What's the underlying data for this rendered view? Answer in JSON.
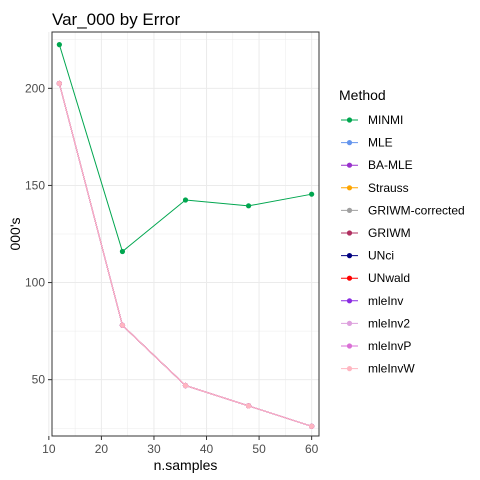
{
  "chart_data": {
    "type": "line",
    "title": "Var_000 by Error",
    "xlabel": "n.samples",
    "ylabel": "000's",
    "xlim": [
      10.6,
      61.4
    ],
    "ylim": [
      21,
      229
    ],
    "x_ticks": [
      10,
      20,
      30,
      40,
      50,
      60
    ],
    "y_ticks": [
      50,
      100,
      150,
      200
    ],
    "grid": true,
    "legend_title": "Method",
    "legend_position": "right",
    "x": [
      12,
      24,
      36,
      48,
      60
    ],
    "series": [
      {
        "name": "MINMI",
        "color": "#00a64f",
        "values": [
          222.5,
          116,
          142.5,
          139.5,
          145.5
        ]
      },
      {
        "name": "MLE",
        "color": "#6495ed",
        "values": [
          202.5,
          78,
          47,
          36.5,
          26
        ]
      },
      {
        "name": "BA-MLE",
        "color": "#9932cc",
        "values": [
          202.5,
          78,
          47,
          36.5,
          26
        ]
      },
      {
        "name": "Strauss",
        "color": "#ffa500",
        "values": [
          202.5,
          78,
          47,
          36.5,
          26
        ]
      },
      {
        "name": "GRIWM-corrected",
        "color": "#a0a0a0",
        "values": [
          202.5,
          78,
          47,
          36.5,
          26
        ]
      },
      {
        "name": "GRIWM",
        "color": "#b03060",
        "values": [
          202.5,
          78,
          47,
          36.5,
          26
        ]
      },
      {
        "name": "UNci",
        "color": "#000080",
        "values": [
          202.5,
          78,
          47,
          36.5,
          26
        ]
      },
      {
        "name": "UNwald",
        "color": "#ff0000",
        "values": [
          202.5,
          78,
          47,
          36.5,
          26
        ]
      },
      {
        "name": "mleInv",
        "color": "#8a2be2",
        "values": [
          202.5,
          78,
          47,
          36.5,
          26
        ]
      },
      {
        "name": "mleInv2",
        "color": "#dda0dd",
        "values": [
          202.5,
          78,
          47,
          36.5,
          26
        ]
      },
      {
        "name": "mleInvP",
        "color": "#da70d6",
        "values": [
          202.5,
          78,
          47,
          36.5,
          26
        ]
      },
      {
        "name": "mleInvW",
        "color": "#ffb6c1",
        "values": [
          202.5,
          78,
          47,
          36.5,
          26
        ]
      }
    ]
  }
}
